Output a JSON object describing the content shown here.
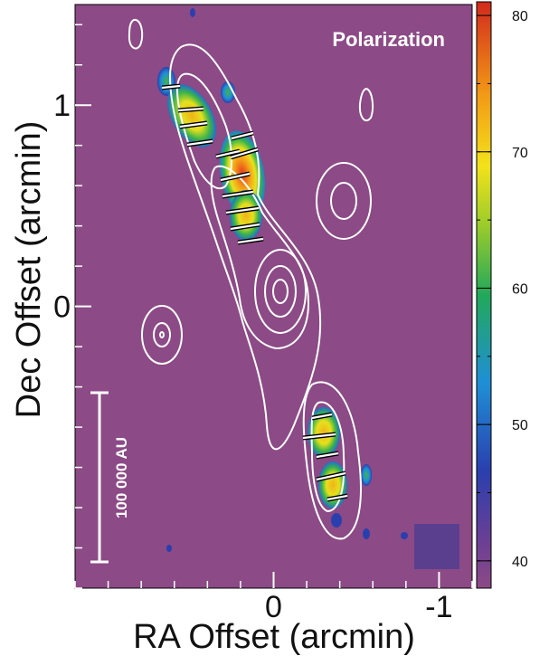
{
  "chart_data": {
    "type": "heatmap",
    "panel_label": "Polarization",
    "xlabel": "RA  Offset  (arcmin)",
    "ylabel": "Dec  Offset  (arcmin)",
    "xlim": [
      1.2,
      -1.2
    ],
    "ylim": [
      -1.4,
      1.5
    ],
    "x_ticks": [
      {
        "value": 0,
        "label": "0"
      },
      {
        "value": -1,
        "label": "-1"
      }
    ],
    "y_ticks": [
      {
        "value": 1,
        "label": "1"
      },
      {
        "value": 0,
        "label": "0"
      }
    ],
    "colorbar": {
      "range": [
        38,
        81
      ],
      "ticks": [
        {
          "value": 80,
          "label": "80"
        },
        {
          "value": 70,
          "label": "70"
        },
        {
          "value": 60,
          "label": "60"
        },
        {
          "value": 50,
          "label": "50"
        },
        {
          "value": 40,
          "label": "40"
        }
      ]
    },
    "scale_bar_label": "100 000 AU",
    "background_color": "#8c4a86",
    "beam_color": "#5b3f8f",
    "contour_color": "#ffffff"
  }
}
